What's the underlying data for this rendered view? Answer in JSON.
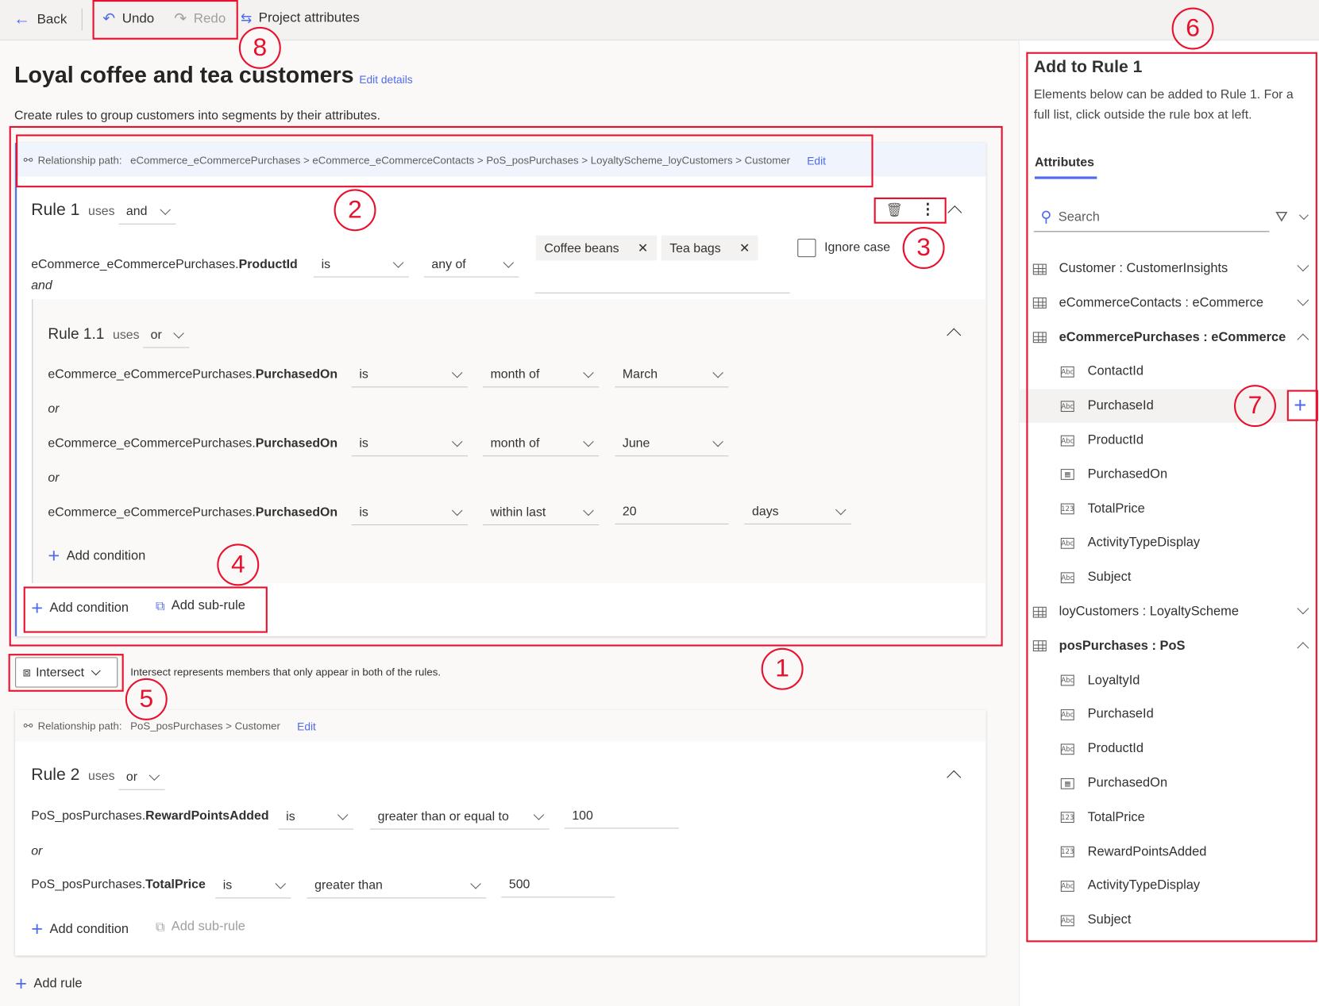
{
  "toolbar": {
    "back": "Back",
    "undo": "Undo",
    "redo": "Redo",
    "project_attributes": "Project attributes"
  },
  "page": {
    "title": "Loyal coffee and tea customers",
    "edit_details": "Edit details",
    "subtitle": "Create rules to group customers into segments by their attributes."
  },
  "rule1": {
    "path_label": "Relationship path:",
    "path": "eCommerce_eCommercePurchases > eCommerce_eCommerceContacts > PoS_posPurchases > LoyaltyScheme_loyCustomers > Customer",
    "path_edit": "Edit",
    "name": "Rule 1",
    "uses": "uses",
    "operator": "and",
    "condition": {
      "entity": "eCommerce_eCommercePurchases.",
      "attr": "ProductId",
      "op": "is",
      "mode": "any of",
      "chips": [
        "Coffee beans",
        "Tea bags"
      ],
      "ignore_case": "Ignore case",
      "ignore_case_checked": false
    },
    "joiner": "and",
    "sub": {
      "name": "Rule 1.1",
      "uses": "uses",
      "operator": "or",
      "joiner": "or",
      "conditions": [
        {
          "entity": "eCommerce_eCommercePurchases.",
          "attr": "PurchasedOn",
          "op": "is",
          "mode": "month of",
          "value": "March"
        },
        {
          "entity": "eCommerce_eCommercePurchases.",
          "attr": "PurchasedOn",
          "op": "is",
          "mode": "month of",
          "value": "June"
        },
        {
          "entity": "eCommerce_eCommercePurchases.",
          "attr": "PurchasedOn",
          "op": "is",
          "mode": "within last",
          "value": "20",
          "unit": "days"
        }
      ],
      "add_condition": "Add condition"
    },
    "add_condition": "Add condition",
    "add_subrule": "Add sub-rule"
  },
  "intersect": {
    "label": "Intersect",
    "description": "Intersect represents members that only appear in both of the rules."
  },
  "rule2": {
    "path_label": "Relationship path:",
    "path": "PoS_posPurchases > Customer",
    "path_edit": "Edit",
    "name": "Rule 2",
    "uses": "uses",
    "operator": "or",
    "joiner": "or",
    "conditions": [
      {
        "entity": "PoS_posPurchases.",
        "attr": "RewardPointsAdded",
        "op": "is",
        "mode": "greater than or equal to",
        "value": "100"
      },
      {
        "entity": "PoS_posPurchases.",
        "attr": "TotalPrice",
        "op": "is",
        "mode": "greater than",
        "value": "500"
      }
    ],
    "add_condition": "Add condition",
    "add_subrule": "Add sub-rule"
  },
  "add_rule": "Add rule",
  "panel": {
    "title": "Add to Rule 1",
    "description": "Elements below can be added to Rule 1. For a full list, click outside the rule box at left.",
    "tab": "Attributes",
    "search_placeholder": "Search",
    "items": [
      {
        "label": "Customer : CustomerInsights",
        "kind": "entity",
        "expanded": false
      },
      {
        "label": "eCommerceContacts : eCommerce",
        "kind": "entity",
        "expanded": false
      },
      {
        "label": "eCommercePurchases : eCommerce",
        "kind": "entity",
        "expanded": true
      },
      {
        "label": "ContactId",
        "kind": "text"
      },
      {
        "label": "PurchaseId",
        "kind": "text",
        "hovered": true
      },
      {
        "label": "ProductId",
        "kind": "text"
      },
      {
        "label": "PurchasedOn",
        "kind": "date"
      },
      {
        "label": "TotalPrice",
        "kind": "number"
      },
      {
        "label": "ActivityTypeDisplay",
        "kind": "text"
      },
      {
        "label": "Subject",
        "kind": "text"
      },
      {
        "label": "loyCustomers : LoyaltyScheme",
        "kind": "entity",
        "expanded": false
      },
      {
        "label": "posPurchases : PoS",
        "kind": "entity",
        "expanded": true
      },
      {
        "label": "LoyaltyId",
        "kind": "text"
      },
      {
        "label": "PurchaseId",
        "kind": "text"
      },
      {
        "label": "ProductId",
        "kind": "text"
      },
      {
        "label": "PurchasedOn",
        "kind": "date"
      },
      {
        "label": "TotalPrice",
        "kind": "number"
      },
      {
        "label": "RewardPointsAdded",
        "kind": "number"
      },
      {
        "label": "ActivityTypeDisplay",
        "kind": "text"
      },
      {
        "label": "Subject",
        "kind": "text"
      }
    ]
  },
  "callouts": [
    "1",
    "2",
    "3",
    "4",
    "5",
    "6",
    "7",
    "8"
  ],
  "colors": {
    "accent": "#4f6bed",
    "callout": "#e8112d",
    "path_bar": "#eff4fd"
  }
}
